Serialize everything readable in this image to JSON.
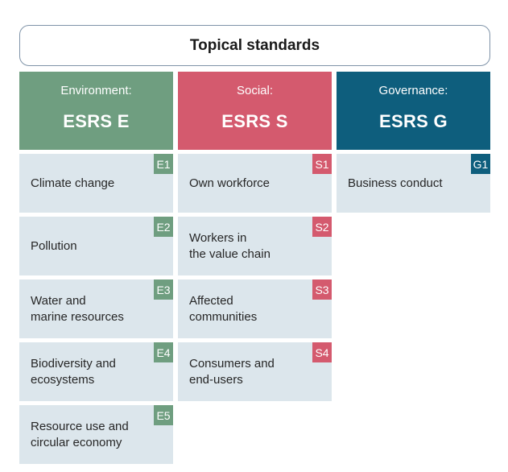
{
  "title": "Topical standards",
  "columns": [
    {
      "subtitle": "Environment:",
      "heading": "ESRS E",
      "color": "#6f9e80",
      "items": [
        {
          "code": "E1",
          "label": "Climate change"
        },
        {
          "code": "E2",
          "label": "Pollution"
        },
        {
          "code": "E3",
          "label": "Water and\nmarine resources"
        },
        {
          "code": "E4",
          "label": "Biodiversity and\necosystems"
        },
        {
          "code": "E5",
          "label": "Resource use and\ncircular economy"
        }
      ]
    },
    {
      "subtitle": "Social:",
      "heading": "ESRS S",
      "color": "#d45a6e",
      "items": [
        {
          "code": "S1",
          "label": "Own workforce"
        },
        {
          "code": "S2",
          "label": "Workers in\nthe value chain"
        },
        {
          "code": "S3",
          "label": "Affected\ncommunities"
        },
        {
          "code": "S4",
          "label": "Consumers and\nend-users"
        }
      ]
    },
    {
      "subtitle": "Governance:",
      "heading": "ESRS G",
      "color": "#0e5e7d",
      "items": [
        {
          "code": "G1",
          "label": "Business conduct"
        }
      ]
    }
  ]
}
